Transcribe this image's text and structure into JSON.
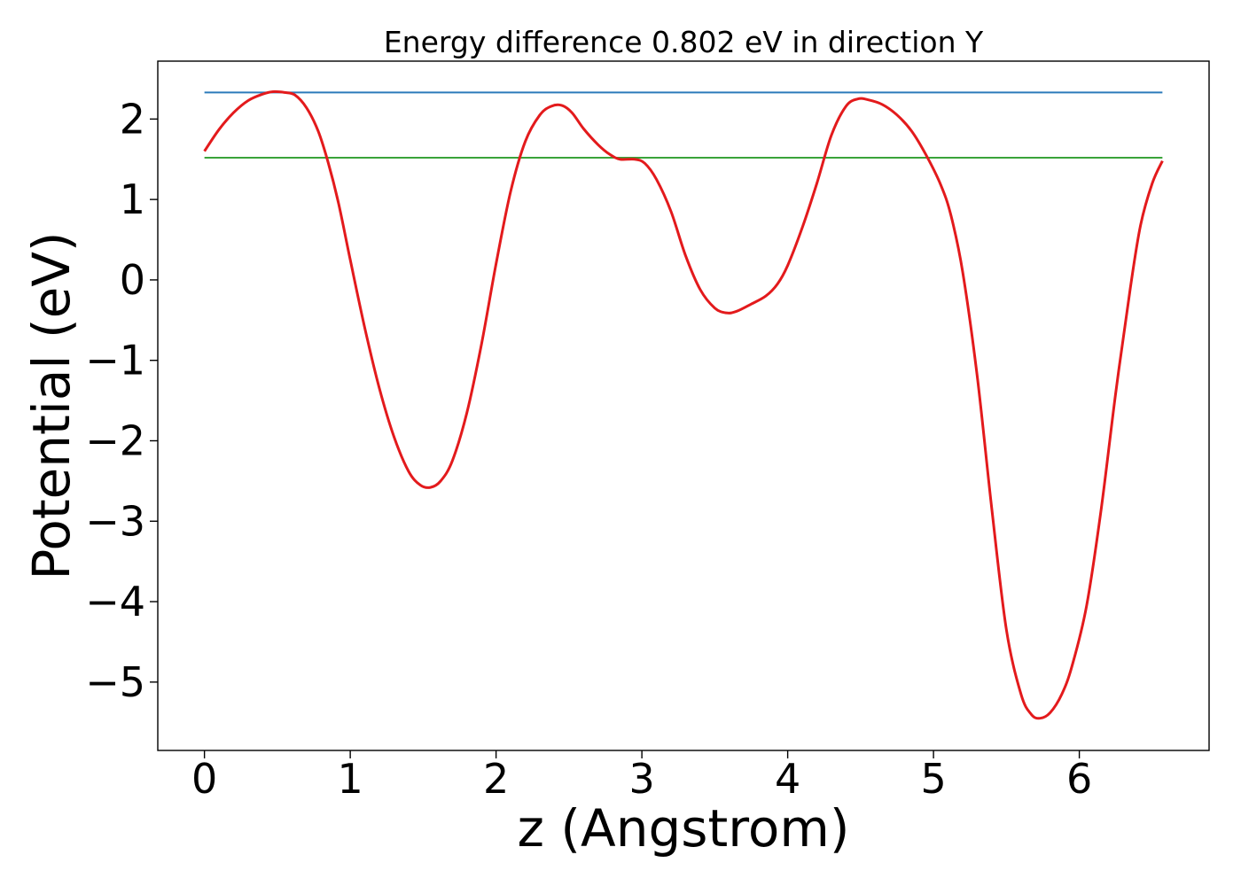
{
  "chart_data": {
    "type": "line",
    "title": "Energy difference 0.802 eV in direction Y",
    "xlabel": "z (Angstrom)",
    "ylabel": "Potential (eV)",
    "xlim": [
      -0.32,
      6.89
    ],
    "ylim": [
      -5.85,
      2.72
    ],
    "x_ticks": [
      0,
      1,
      2,
      3,
      4,
      5,
      6
    ],
    "x_tick_labels": [
      "0",
      "1",
      "2",
      "3",
      "4",
      "5",
      "6"
    ],
    "y_ticks": [
      2,
      1,
      0,
      -1,
      -2,
      -3,
      -4,
      -5
    ],
    "y_tick_labels": [
      "2",
      "1",
      "0",
      "−1",
      "−2",
      "−3",
      "−4",
      "−5"
    ],
    "grid": false,
    "series": [
      {
        "color": "#e31a1c",
        "kind": "curve",
        "points": [
          [
            0.0,
            1.6
          ],
          [
            0.1,
            1.87
          ],
          [
            0.2,
            2.08
          ],
          [
            0.3,
            2.23
          ],
          [
            0.4,
            2.31
          ],
          [
            0.47,
            2.34
          ],
          [
            0.55,
            2.33
          ],
          [
            0.62,
            2.3
          ],
          [
            0.7,
            2.14
          ],
          [
            0.78,
            1.85
          ],
          [
            0.85,
            1.45
          ],
          [
            0.92,
            0.95
          ],
          [
            1.0,
            0.25
          ],
          [
            1.1,
            -0.6
          ],
          [
            1.2,
            -1.35
          ],
          [
            1.3,
            -1.95
          ],
          [
            1.4,
            -2.38
          ],
          [
            1.48,
            -2.55
          ],
          [
            1.55,
            -2.58
          ],
          [
            1.62,
            -2.5
          ],
          [
            1.7,
            -2.25
          ],
          [
            1.8,
            -1.65
          ],
          [
            1.9,
            -0.8
          ],
          [
            2.0,
            0.2
          ],
          [
            2.1,
            1.1
          ],
          [
            2.2,
            1.72
          ],
          [
            2.3,
            2.05
          ],
          [
            2.38,
            2.16
          ],
          [
            2.45,
            2.17
          ],
          [
            2.52,
            2.08
          ],
          [
            2.6,
            1.88
          ],
          [
            2.7,
            1.68
          ],
          [
            2.78,
            1.56
          ],
          [
            2.85,
            1.5
          ],
          [
            2.95,
            1.5
          ],
          [
            3.02,
            1.45
          ],
          [
            3.1,
            1.25
          ],
          [
            3.2,
            0.85
          ],
          [
            3.3,
            0.3
          ],
          [
            3.4,
            -0.12
          ],
          [
            3.5,
            -0.35
          ],
          [
            3.58,
            -0.41
          ],
          [
            3.65,
            -0.39
          ],
          [
            3.75,
            -0.3
          ],
          [
            3.85,
            -0.2
          ],
          [
            3.93,
            -0.05
          ],
          [
            4.0,
            0.18
          ],
          [
            4.1,
            0.65
          ],
          [
            4.2,
            1.2
          ],
          [
            4.3,
            1.8
          ],
          [
            4.4,
            2.16
          ],
          [
            4.48,
            2.25
          ],
          [
            4.55,
            2.24
          ],
          [
            4.65,
            2.18
          ],
          [
            4.75,
            2.05
          ],
          [
            4.85,
            1.85
          ],
          [
            4.95,
            1.55
          ],
          [
            5.05,
            1.18
          ],
          [
            5.12,
            0.8
          ],
          [
            5.2,
            0.1
          ],
          [
            5.3,
            -1.2
          ],
          [
            5.4,
            -2.85
          ],
          [
            5.5,
            -4.35
          ],
          [
            5.6,
            -5.15
          ],
          [
            5.67,
            -5.4
          ],
          [
            5.73,
            -5.45
          ],
          [
            5.8,
            -5.38
          ],
          [
            5.88,
            -5.15
          ],
          [
            5.95,
            -4.8
          ],
          [
            6.05,
            -4.05
          ],
          [
            6.15,
            -2.85
          ],
          [
            6.25,
            -1.4
          ],
          [
            6.35,
            -0.1
          ],
          [
            6.42,
            0.68
          ],
          [
            6.5,
            1.2
          ],
          [
            6.57,
            1.48
          ]
        ]
      },
      {
        "color": "#2b7bba",
        "kind": "hline",
        "y": 2.33,
        "x_range": [
          0.0,
          6.57
        ]
      },
      {
        "color": "#3aa33a",
        "kind": "hline",
        "y": 1.52,
        "x_range": [
          0.0,
          6.57
        ]
      }
    ]
  }
}
